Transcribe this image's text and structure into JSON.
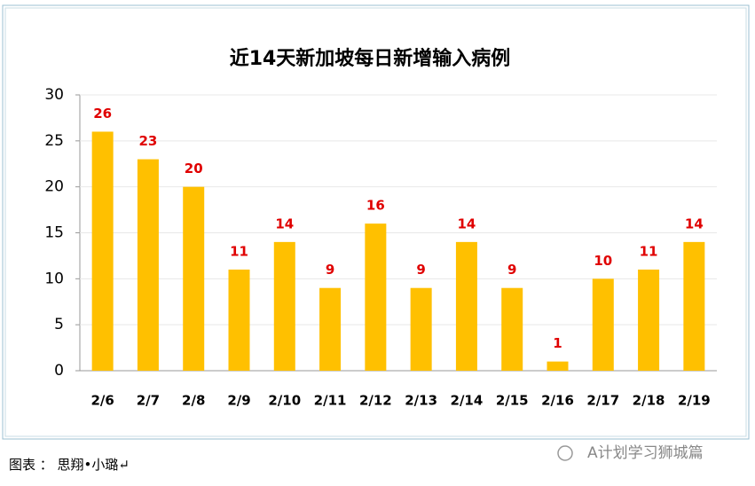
{
  "chart_data": {
    "type": "bar",
    "title": "近14天新加坡每日新增输入病例",
    "categories": [
      "2/6",
      "2/7",
      "2/8",
      "2/9",
      "2/10",
      "2/11",
      "2/12",
      "2/13",
      "2/14",
      "2/15",
      "2/16",
      "2/17",
      "2/18",
      "2/19"
    ],
    "values": [
      26,
      23,
      20,
      11,
      14,
      9,
      16,
      9,
      14,
      9,
      1,
      10,
      11,
      14
    ],
    "color": "#ffc000",
    "label_color": "#e00000",
    "ylim": [
      0,
      30
    ],
    "yticks": [
      0,
      5,
      10,
      15,
      20,
      25,
      30
    ],
    "grid": true
  },
  "caption": "图表 ： 思翔•小璐↵",
  "watermark": "A计划学习狮城篇"
}
